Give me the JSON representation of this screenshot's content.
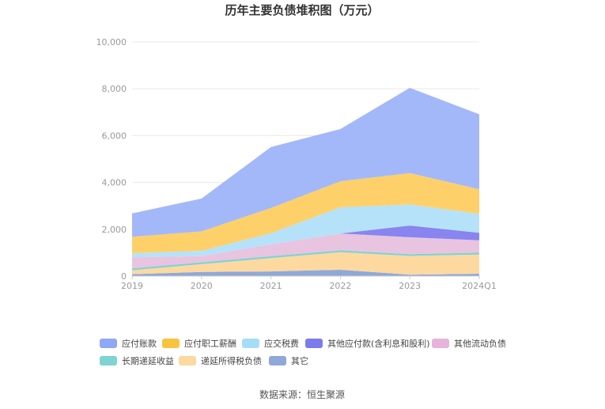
{
  "chart_data": {
    "type": "area",
    "stacked": true,
    "title": "历年主要负债堆积图（万元）",
    "x": [
      "2019",
      "2020",
      "2021",
      "2022",
      "2023",
      "2024Q1"
    ],
    "ylim": [
      0,
      10000
    ],
    "yticks": [
      "0",
      "2,000",
      "4,000",
      "6,000",
      "8,000",
      "10,000"
    ],
    "grid": true,
    "legend_position": "bottom",
    "series": [
      {
        "name": "其它",
        "color": "#8fa8d8",
        "values": [
          80,
          180,
          200,
          270,
          60,
          100
        ]
      },
      {
        "name": "递延所得税负债",
        "color": "#fdd9a0",
        "values": [
          170,
          330,
          570,
          750,
          800,
          820
        ]
      },
      {
        "name": "长期递延收益",
        "color": "#7ed3d3",
        "values": [
          80,
          80,
          80,
          80,
          80,
          80
        ]
      },
      {
        "name": "其他流动负债",
        "color": "#e8c4e0",
        "values": [
          470,
          260,
          510,
          720,
          720,
          530
        ]
      },
      {
        "name": "其他应付款(含利息和股利)",
        "color": "#8884f0",
        "values": [
          0,
          0,
          0,
          0,
          500,
          320
        ]
      },
      {
        "name": "应交税费",
        "color": "#b5e2f8",
        "values": [
          180,
          230,
          470,
          1120,
          900,
          810
        ]
      },
      {
        "name": "应付职工薪酬",
        "color": "#fdd06a",
        "values": [
          700,
          830,
          1080,
          1110,
          1340,
          1050
        ]
      },
      {
        "name": "应付账款",
        "color": "#a3b8f8",
        "values": [
          1000,
          1400,
          2600,
          2230,
          3640,
          3200
        ]
      }
    ]
  },
  "legend": [
    {
      "name": "应付账款",
      "color": "#8fa8f5"
    },
    {
      "name": "应付职工薪酬",
      "color": "#f9c33d"
    },
    {
      "name": "应交税费",
      "color": "#a6dcf7"
    },
    {
      "name": "其他应付款(含利息和股利)",
      "color": "#7b7beb"
    },
    {
      "name": "其他流动负债",
      "color": "#e6b3dc"
    },
    {
      "name": "长期递延收益",
      "color": "#7ed3d3"
    },
    {
      "name": "递延所得税负债",
      "color": "#fdd9a0"
    },
    {
      "name": "其它",
      "color": "#8fa8d8"
    }
  ],
  "source": "数据来源：恒生聚源"
}
